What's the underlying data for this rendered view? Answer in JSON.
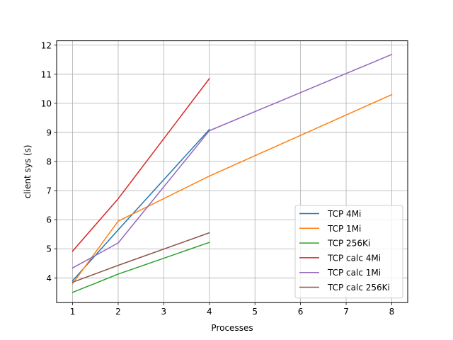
{
  "chart_data": {
    "type": "line",
    "title": "",
    "xlabel": "Processes",
    "ylabel": "client sys (s)",
    "xlim": [
      0.65,
      8.35
    ],
    "ylim": [
      3.15,
      12.15
    ],
    "xticks": [
      1,
      2,
      3,
      4,
      5,
      6,
      7,
      8
    ],
    "yticks": [
      4,
      5,
      6,
      7,
      8,
      9,
      10,
      11,
      12
    ],
    "grid": true,
    "legend_position": "lower-right",
    "series": [
      {
        "name": "TCP 4Mi",
        "color": "#1f77b4",
        "x": [
          1,
          2,
          4
        ],
        "y": [
          3.9,
          5.65,
          9.1
        ]
      },
      {
        "name": "TCP 1Mi",
        "color": "#ff7f0e",
        "x": [
          1,
          2,
          4,
          8
        ],
        "y": [
          3.8,
          5.95,
          7.5,
          10.3
        ]
      },
      {
        "name": "TCP 256Ki",
        "color": "#2ca02c",
        "x": [
          1,
          2,
          4
        ],
        "y": [
          3.5,
          4.13,
          5.22
        ]
      },
      {
        "name": "TCP calc 4Mi",
        "color": "#d62728",
        "x": [
          1,
          2,
          4
        ],
        "y": [
          4.92,
          6.72,
          10.85
        ]
      },
      {
        "name": "TCP calc 1Mi",
        "color": "#9467bd",
        "x": [
          1,
          2,
          4,
          8
        ],
        "y": [
          4.34,
          5.2,
          9.06,
          11.68
        ]
      },
      {
        "name": "TCP calc 256Ki",
        "color": "#8c564b",
        "x": [
          1,
          2,
          4
        ],
        "y": [
          3.85,
          4.43,
          5.55
        ]
      }
    ]
  }
}
